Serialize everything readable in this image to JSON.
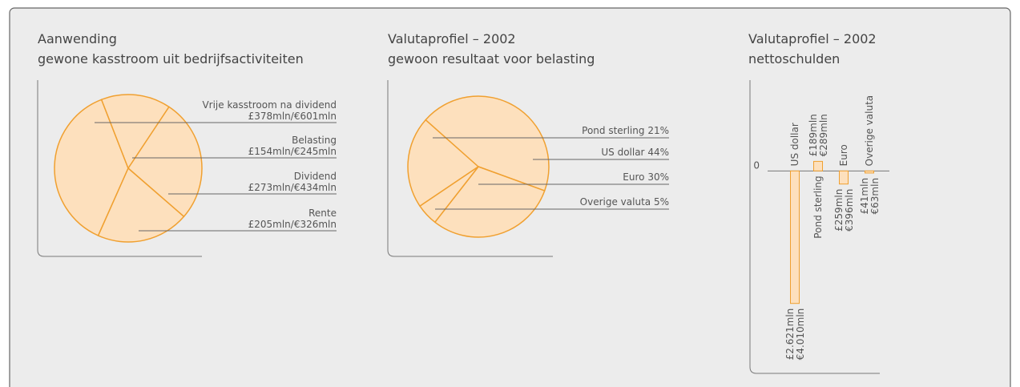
{
  "chart_data": [
    {
      "type": "pie",
      "title": "Aanwending",
      "subtitle": "gewone kasstroom uit bedrijfsactiviteiten",
      "categories": [
        "Vrije kasstroom na dividend",
        "Belasting",
        "Dividend",
        "Rente"
      ],
      "values": [
        378,
        154,
        273,
        205
      ],
      "value_labels": [
        "£378mln/€601mln",
        "£154mln/€245mln",
        "£273mln/€434mln",
        "£205mln/€326mln"
      ],
      "color": "#fde0bd",
      "edge_color": "#f0a030"
    },
    {
      "type": "pie",
      "title": "Valutaprofiel – 2002",
      "subtitle": "gewoon resultaat voor belasting",
      "categories": [
        "Pond sterling",
        "US dollar",
        "Euro",
        "Overige valuta"
      ],
      "values": [
        21,
        44,
        30,
        5
      ],
      "value_labels": [
        "21%",
        "44%",
        "30%",
        "5%"
      ],
      "color": "#fde0bd",
      "edge_color": "#f0a030"
    },
    {
      "type": "bar",
      "title": "Valutaprofiel – 2002",
      "subtitle": "nettoschulden",
      "categories": [
        "US dollar",
        "Pond sterling",
        "Euro",
        "Overige valuta"
      ],
      "values": [
        -2621,
        189,
        -259,
        -41
      ],
      "value_labels": [
        "£2.621mln",
        "£189mln",
        "£259mln",
        "£41mln"
      ],
      "value_labels_eur": [
        "€4.010mln",
        "€289mln",
        "€396mln",
        "€63mln"
      ],
      "ylim": [
        -2800,
        1400
      ],
      "yticks": [
        0
      ],
      "color": "#fde0bd",
      "edge_color": "#f0a030"
    }
  ]
}
